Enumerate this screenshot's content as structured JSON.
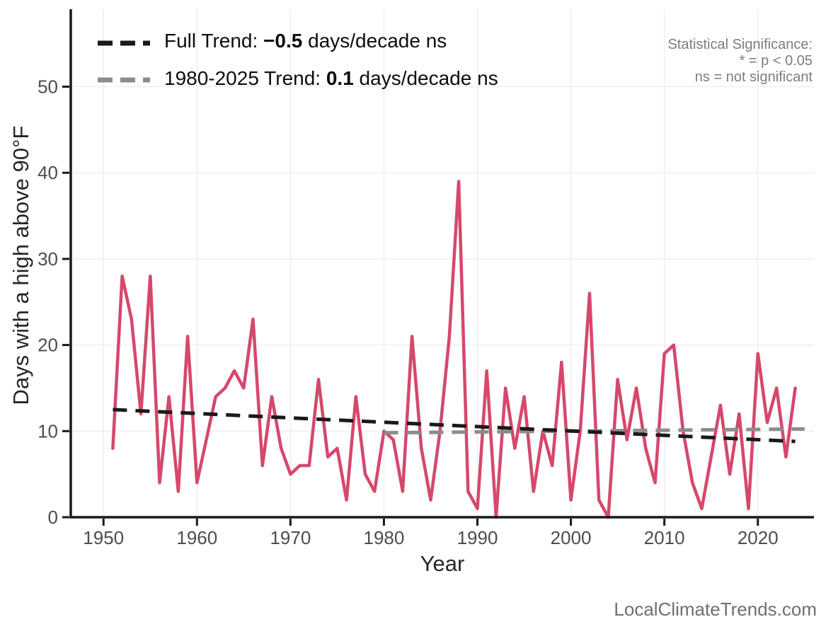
{
  "chart_data": {
    "type": "line",
    "title": "",
    "xlabel": "Year",
    "ylabel": "Days with a high above 90°F",
    "x_range": [
      1946.5,
      2026
    ],
    "y_range": [
      0,
      59
    ],
    "x_ticks": [
      1950,
      1960,
      1970,
      1980,
      1990,
      2000,
      2010,
      2020
    ],
    "y_ticks": [
      0,
      10,
      20,
      30,
      40,
      50
    ],
    "grid": true,
    "line_color": "#d5486c",
    "series_name": "Days with a high above 90°F",
    "years": [
      1951,
      1952,
      1953,
      1954,
      1955,
      1956,
      1957,
      1958,
      1959,
      1960,
      1961,
      1962,
      1963,
      1964,
      1965,
      1966,
      1967,
      1968,
      1969,
      1970,
      1971,
      1972,
      1973,
      1974,
      1975,
      1976,
      1977,
      1978,
      1979,
      1980,
      1981,
      1982,
      1983,
      1984,
      1985,
      1986,
      1987,
      1988,
      1989,
      1990,
      1991,
      1992,
      1993,
      1994,
      1995,
      1996,
      1997,
      1998,
      1999,
      2000,
      2001,
      2002,
      2003,
      2004,
      2005,
      2006,
      2007,
      2008,
      2009,
      2010,
      2011,
      2012,
      2013,
      2014,
      2015,
      2016,
      2017,
      2018,
      2019,
      2020,
      2021,
      2022,
      2023,
      2024
    ],
    "values": [
      8,
      28,
      23,
      12,
      28,
      4,
      14,
      3,
      21,
      4,
      9,
      14,
      15,
      17,
      15,
      23,
      6,
      14,
      8,
      5,
      6,
      6,
      16,
      7,
      8,
      2,
      14,
      5,
      3,
      10,
      9,
      3,
      21,
      8,
      2,
      10,
      21,
      39,
      3,
      1,
      17,
      0,
      15,
      8,
      14,
      3,
      10,
      6,
      18,
      2,
      10,
      26,
      2,
      0,
      16,
      9,
      15,
      8,
      4,
      19,
      20,
      10,
      4,
      1,
      7,
      13,
      5,
      12,
      1,
      19,
      11,
      15,
      7,
      15
    ],
    "trends": [
      {
        "name": "Full Trend",
        "slope_per_decade": -0.5,
        "significance": "ns",
        "start_year": 1951,
        "start_value": 12.5,
        "end_year": 2024,
        "end_value": 8.8,
        "color": "#1a1a1a"
      },
      {
        "name": "1980-2025 Trend",
        "slope_per_decade": 0.1,
        "significance": "ns",
        "start_year": 1980,
        "start_value": 9.8,
        "end_year": 2025,
        "end_value": 10.25,
        "color": "#8c8c8c"
      }
    ],
    "legend_position": "top-left",
    "gridline_color": "#ededed",
    "axis_color": "#1a1a1a",
    "tick_label_color": "#4d4d4d"
  },
  "legend": {
    "full": {
      "prefix": "Full Trend: ",
      "value": "−0.5",
      "suffix": " days/decade ns",
      "key_color": "#1a1a1a"
    },
    "recent": {
      "prefix": "1980-2025 Trend: ",
      "value": "0.1",
      "suffix": " days/decade ns",
      "key_color": "#8c8c8c"
    }
  },
  "significance_note": {
    "line1": "Statistical Significance:",
    "line2": "* = p < 0.05",
    "line3": "ns = not significant"
  },
  "axes": {
    "x_label": "Year",
    "y_label": "Days with a high above 90°F"
  },
  "watermark": "LocalClimateTrends.com"
}
